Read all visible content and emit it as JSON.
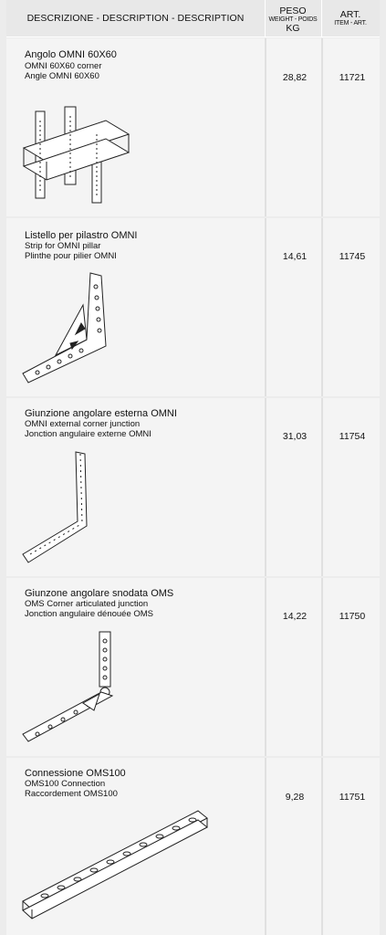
{
  "header": {
    "description": "DESCRIZIONE - DESCRIPTION - DESCRIPTION",
    "peso": "PESO",
    "weight_sub": "WEIGHT - POIDS",
    "kg": "KG",
    "art": "ART.",
    "item_sub": "ITEM - ART."
  },
  "rows": [
    {
      "it": "Angolo OMNI 60X60",
      "en": "OMNI 60X60 corner",
      "fr": "Angle OMNI 60X60",
      "weight": "28,82",
      "art": "11721",
      "icon": "omni-corner-bracket-icon"
    },
    {
      "it": "Listello per pilastro OMNI",
      "en": "Strip for OMNI pillar",
      "fr": "Plinthe pour pilier OMNI",
      "weight": "14,61",
      "art": "11745",
      "icon": "pillar-strip-icon"
    },
    {
      "it": "Giunzione angolare esterna OMNI",
      "en": "OMNI external corner junction",
      "fr": "Jonction angulaire externe OMNI",
      "weight": "31,03",
      "art": "11754",
      "icon": "external-corner-junction-icon"
    },
    {
      "it": "Giunzone angolare snodata OMS",
      "en": "OMS Corner articulated junction",
      "fr": "Jonction angulaire dénouée OMS",
      "weight": "14,22",
      "art": "11750",
      "icon": "articulated-junction-icon"
    },
    {
      "it": "Connessione OMS100",
      "en": "OMS100 Connection",
      "fr": "Raccordement OMS100",
      "weight": "9,28",
      "art": "11751",
      "icon": "oms100-connection-icon"
    }
  ]
}
